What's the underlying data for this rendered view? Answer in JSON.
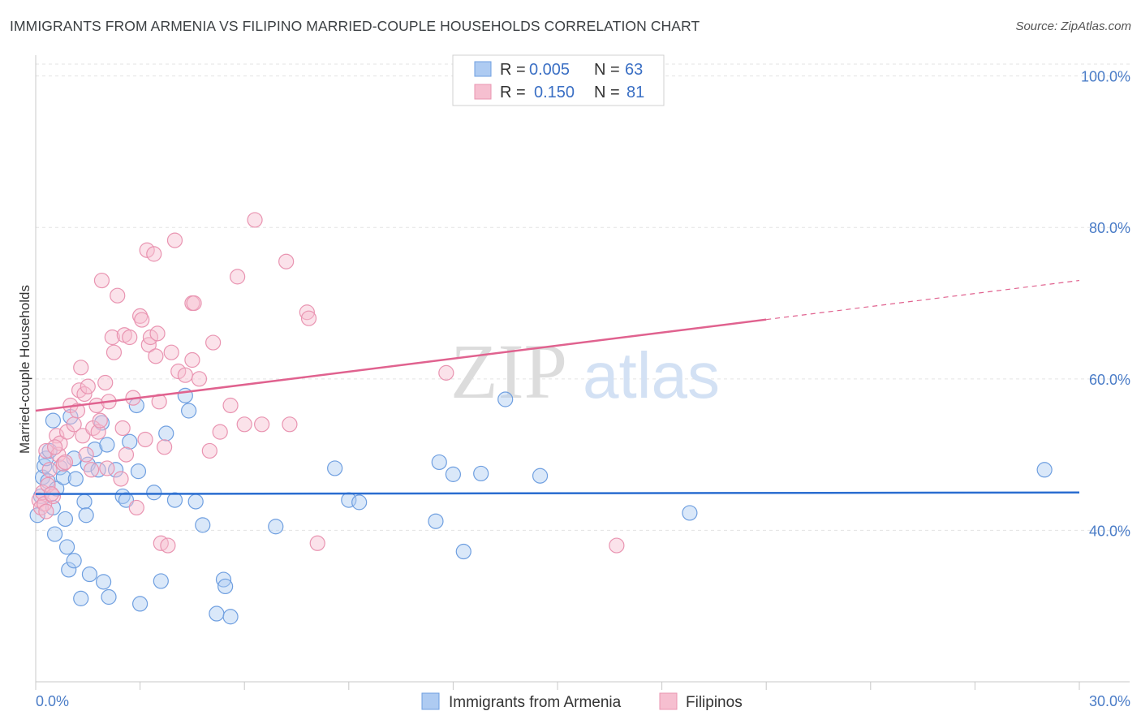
{
  "title": "IMMIGRANTS FROM ARMENIA VS FILIPINO MARRIED-COUPLE HOUSEHOLDS CORRELATION CHART",
  "source": "Source: ZipAtlas.com",
  "watermark": {
    "zip": "ZIP",
    "atlas": "atlas"
  },
  "colors": {
    "blue_fill": "#aecbf2",
    "blue_stroke": "#6f9fe0",
    "blue_line": "#2a6dd0",
    "pink_fill": "#f6bfd0",
    "pink_stroke": "#e994b1",
    "pink_line": "#e0628f",
    "grid": "#e3e3e3",
    "axis_text": "#4a7cc7"
  },
  "chart_data": {
    "type": "scatter",
    "title": "IMMIGRANTS FROM ARMENIA VS FILIPINO MARRIED-COUPLE HOUSEHOLDS CORRELATION CHART",
    "xlabel": "",
    "ylabel": "Married-couple Households",
    "xlim": [
      0,
      30
    ],
    "ylim": [
      20,
      102
    ],
    "x_tick_labels": [
      "0.0%",
      "30.0%"
    ],
    "y_ticks": [
      40,
      60,
      80,
      100
    ],
    "y_tick_labels": [
      "40.0%",
      "60.0%",
      "80.0%",
      "100.0%"
    ],
    "legend": {
      "position": "top-center",
      "entries": [
        {
          "r_label": "R =",
          "r_value": "0.005",
          "n_label": "N =",
          "n_value": "63"
        },
        {
          "r_label": "R =",
          "r_value": "0.150",
          "n_label": "N =",
          "n_value": "81"
        }
      ]
    },
    "series": [
      {
        "name": "Immigrants from Armenia",
        "color": "blue",
        "trend": {
          "x0": 0,
          "y0": 44.8,
          "x1": 30,
          "y1": 45.0,
          "solid_until": 30
        },
        "points": [
          [
            0.05,
            42.0
          ],
          [
            0.15,
            44.5
          ],
          [
            0.2,
            47.0
          ],
          [
            0.25,
            48.5
          ],
          [
            0.3,
            49.5
          ],
          [
            0.35,
            46.5
          ],
          [
            0.4,
            50.5
          ],
          [
            0.5,
            54.5
          ],
          [
            0.5,
            43.0
          ],
          [
            0.55,
            39.5
          ],
          [
            0.6,
            45.5
          ],
          [
            0.7,
            48.3
          ],
          [
            0.8,
            47.0
          ],
          [
            0.85,
            41.5
          ],
          [
            0.9,
            37.8
          ],
          [
            0.95,
            34.8
          ],
          [
            1.0,
            55.0
          ],
          [
            1.1,
            49.5
          ],
          [
            1.15,
            46.8
          ],
          [
            1.1,
            36.0
          ],
          [
            1.3,
            31.0
          ],
          [
            1.4,
            43.8
          ],
          [
            1.45,
            42.0
          ],
          [
            1.5,
            48.7
          ],
          [
            1.55,
            34.2
          ],
          [
            1.7,
            50.7
          ],
          [
            1.8,
            48.0
          ],
          [
            1.9,
            54.2
          ],
          [
            1.95,
            33.2
          ],
          [
            2.05,
            51.3
          ],
          [
            2.1,
            31.2
          ],
          [
            2.3,
            48.0
          ],
          [
            2.5,
            44.5
          ],
          [
            2.6,
            44.0
          ],
          [
            2.7,
            51.7
          ],
          [
            2.9,
            56.5
          ],
          [
            2.95,
            47.8
          ],
          [
            3.0,
            30.3
          ],
          [
            3.4,
            45.0
          ],
          [
            3.6,
            33.3
          ],
          [
            3.75,
            52.8
          ],
          [
            4.0,
            44.0
          ],
          [
            4.3,
            57.8
          ],
          [
            4.4,
            55.8
          ],
          [
            4.6,
            43.8
          ],
          [
            4.8,
            40.7
          ],
          [
            5.2,
            29.0
          ],
          [
            5.4,
            33.5
          ],
          [
            5.45,
            32.6
          ],
          [
            5.6,
            28.6
          ],
          [
            6.9,
            40.5
          ],
          [
            8.6,
            48.2
          ],
          [
            9.0,
            44.0
          ],
          [
            9.3,
            43.7
          ],
          [
            11.5,
            41.2
          ],
          [
            11.6,
            49.0
          ],
          [
            12.0,
            47.4
          ],
          [
            12.3,
            37.2
          ],
          [
            12.8,
            47.5
          ],
          [
            13.5,
            57.3
          ],
          [
            14.5,
            47.2
          ],
          [
            18.8,
            42.3
          ],
          [
            29.0,
            48.0
          ]
        ]
      },
      {
        "name": "Filipinos",
        "color": "pink",
        "trend": {
          "x0": 0,
          "y0": 55.8,
          "x1": 30,
          "y1": 73.0,
          "solid_until": 21
        },
        "points": [
          [
            0.1,
            44.0
          ],
          [
            0.15,
            43.0
          ],
          [
            0.2,
            45.0
          ],
          [
            0.25,
            43.5
          ],
          [
            0.3,
            42.5
          ],
          [
            0.35,
            46.0
          ],
          [
            0.3,
            50.5
          ],
          [
            0.4,
            48.0
          ],
          [
            0.5,
            44.5
          ],
          [
            0.6,
            52.5
          ],
          [
            0.65,
            50.0
          ],
          [
            0.7,
            51.5
          ],
          [
            0.8,
            48.8
          ],
          [
            0.85,
            49.0
          ],
          [
            0.9,
            53.0
          ],
          [
            1.0,
            56.5
          ],
          [
            1.1,
            54.0
          ],
          [
            1.2,
            55.8
          ],
          [
            1.25,
            58.5
          ],
          [
            1.3,
            61.5
          ],
          [
            1.35,
            52.5
          ],
          [
            1.4,
            58.0
          ],
          [
            1.5,
            59.0
          ],
          [
            1.6,
            48.0
          ],
          [
            1.65,
            53.5
          ],
          [
            1.75,
            56.5
          ],
          [
            1.8,
            53.0
          ],
          [
            1.85,
            54.5
          ],
          [
            1.9,
            73.0
          ],
          [
            2.0,
            59.5
          ],
          [
            2.05,
            48.2
          ],
          [
            2.1,
            57.0
          ],
          [
            2.2,
            65.5
          ],
          [
            2.25,
            63.5
          ],
          [
            2.35,
            71.0
          ],
          [
            2.45,
            46.8
          ],
          [
            2.5,
            53.5
          ],
          [
            2.55,
            65.8
          ],
          [
            2.6,
            50.0
          ],
          [
            2.7,
            65.5
          ],
          [
            2.8,
            57.5
          ],
          [
            2.9,
            43.0
          ],
          [
            3.0,
            68.3
          ],
          [
            3.05,
            67.8
          ],
          [
            3.15,
            52.0
          ],
          [
            3.2,
            77.0
          ],
          [
            3.25,
            64.5
          ],
          [
            3.3,
            65.5
          ],
          [
            3.4,
            76.5
          ],
          [
            3.45,
            63.0
          ],
          [
            3.5,
            66.0
          ],
          [
            3.55,
            57.0
          ],
          [
            3.6,
            38.3
          ],
          [
            3.7,
            51.0
          ],
          [
            3.8,
            38.0
          ],
          [
            3.9,
            63.5
          ],
          [
            4.0,
            78.3
          ],
          [
            4.1,
            61.0
          ],
          [
            4.3,
            60.5
          ],
          [
            4.5,
            62.5
          ],
          [
            4.5,
            70.0
          ],
          [
            4.55,
            70.0
          ],
          [
            4.7,
            60.0
          ],
          [
            5.0,
            50.5
          ],
          [
            5.1,
            64.8
          ],
          [
            5.3,
            53.0
          ],
          [
            5.6,
            56.5
          ],
          [
            5.8,
            73.5
          ],
          [
            6.0,
            54.0
          ],
          [
            6.3,
            81.0
          ],
          [
            6.5,
            54.0
          ],
          [
            7.2,
            75.5
          ],
          [
            7.3,
            54.0
          ],
          [
            7.8,
            68.8
          ],
          [
            7.85,
            68.0
          ],
          [
            8.1,
            38.3
          ],
          [
            11.8,
            60.8
          ],
          [
            16.7,
            38.0
          ],
          [
            0.45,
            44.8
          ],
          [
            0.55,
            51.0
          ],
          [
            1.45,
            50.0
          ]
        ]
      }
    ]
  },
  "bottom_legend": [
    {
      "label": "Immigrants from Armenia",
      "color": "blue"
    },
    {
      "label": "Filipinos",
      "color": "pink"
    }
  ]
}
